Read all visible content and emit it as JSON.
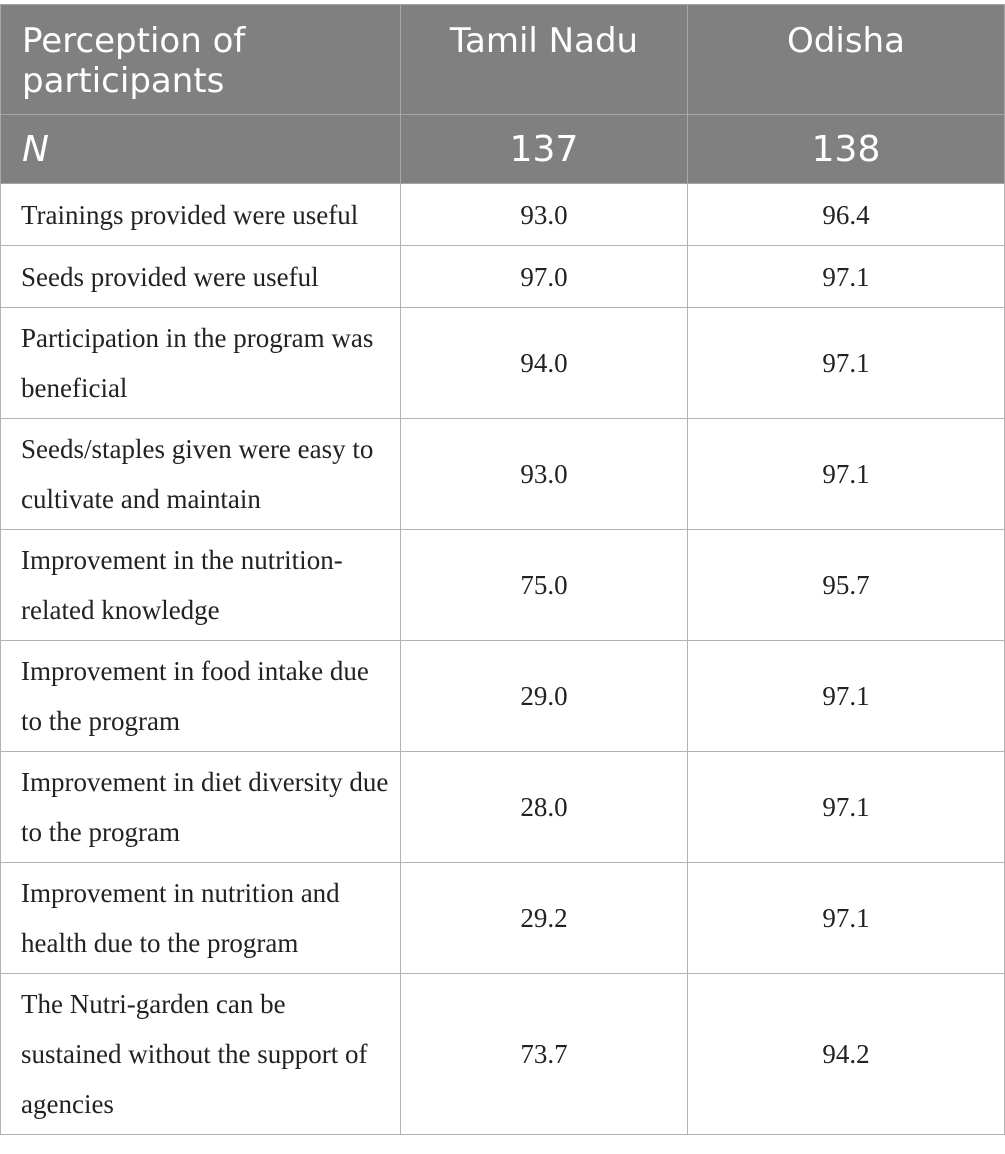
{
  "table": {
    "header": {
      "col1": "Perception of participants",
      "col2": "Tamil Nadu",
      "col3": "Odisha"
    },
    "n_row": {
      "label": "N",
      "tamil_nadu": "137",
      "odisha": "138"
    },
    "rows": [
      {
        "label": "Trainings provided were useful",
        "tamil_nadu": "93.0",
        "odisha": "96.4"
      },
      {
        "label": "Seeds provided were useful",
        "tamil_nadu": "97.0",
        "odisha": "97.1"
      },
      {
        "label": "Participation in the program was beneficial",
        "tamil_nadu": "94.0",
        "odisha": "97.1"
      },
      {
        "label": "Seeds/staples given were easy to cultivate and maintain",
        "tamil_nadu": "93.0",
        "odisha": "97.1"
      },
      {
        "label": "Improvement in the nutrition-related knowledge",
        "tamil_nadu": "75.0",
        "odisha": "95.7"
      },
      {
        "label": "Improvement in food intake due to the program",
        "tamil_nadu": "29.0",
        "odisha": "97.1"
      },
      {
        "label": "Improvement in diet diversity due to the program",
        "tamil_nadu": "28.0",
        "odisha": "97.1"
      },
      {
        "label": "Improvement in nutrition and health due to the program",
        "tamil_nadu": "29.2",
        "odisha": "97.1"
      },
      {
        "label": "The Nutri-garden can be sustained without the support of agencies",
        "tamil_nadu": "73.7",
        "odisha": "94.2"
      }
    ]
  }
}
